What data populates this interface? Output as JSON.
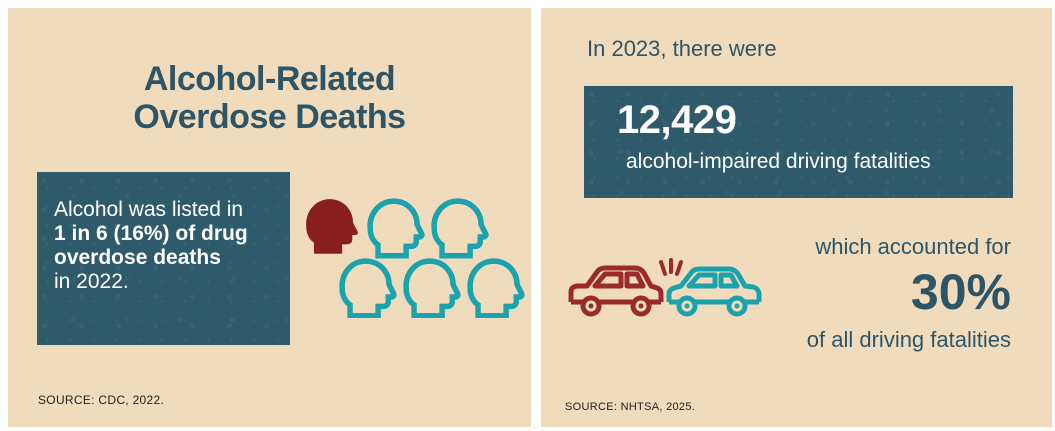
{
  "left_panel": {
    "title_line1": "Alcohol-Related",
    "title_line2": "Overdose Deaths",
    "box": {
      "line1": "Alcohol was listed in",
      "line2": "1 in 6 (16%) of drug",
      "line3": "overdose deaths",
      "line4": "in 2022."
    },
    "source": "SOURCE: CDC, 2022.",
    "icon": "six-heads-one-highlighted-icon",
    "colors": {
      "highlight": "#8b1e1e",
      "outline": "#1aa3ad"
    }
  },
  "right_panel": {
    "intro": "In 2023, there were",
    "box": {
      "number": "12,429",
      "label": "alcohol-impaired driving fatalities"
    },
    "accounted": "which accounted for",
    "percent": "30%",
    "of_all": "of all driving fatalities",
    "source": "SOURCE: NHTSA, 2025.",
    "icon": "car-crash-icon"
  },
  "colors": {
    "background": "#f0dcbd",
    "box": "#2f5a6b",
    "heading": "#2e5566"
  }
}
